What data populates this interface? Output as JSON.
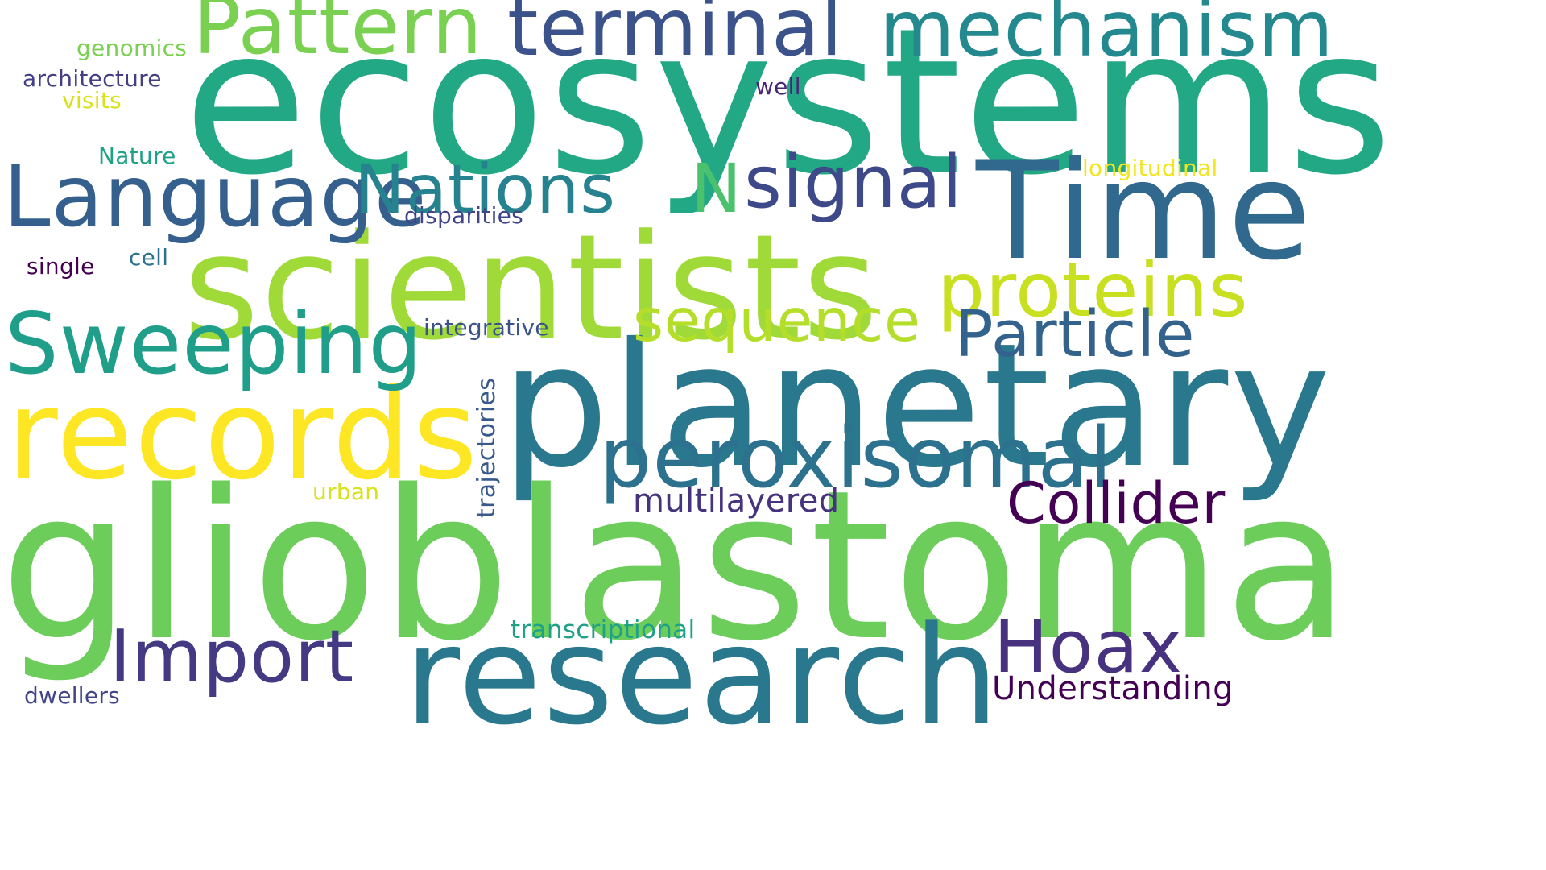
{
  "words": [
    {
      "text": "ecosystems",
      "color": "#22a884"
    },
    {
      "text": "glioblastoma",
      "color": "#6ccd5a"
    },
    {
      "text": "scientists",
      "color": "#a0da39"
    },
    {
      "text": "planetary",
      "color": "#2a788e"
    },
    {
      "text": "research",
      "color": "#2a788e"
    },
    {
      "text": "records",
      "color": "#fde725"
    },
    {
      "text": "Time",
      "color": "#31688e"
    },
    {
      "text": "Language",
      "color": "#35608d"
    },
    {
      "text": "Pattern",
      "color": "#7ad151"
    },
    {
      "text": "terminal",
      "color": "#3b528b"
    },
    {
      "text": "mechanism",
      "color": "#23898e"
    },
    {
      "text": "Sweeping",
      "color": "#1f9e89"
    },
    {
      "text": "peroxisomal",
      "color": "#2c728e"
    },
    {
      "text": "proteins",
      "color": "#c8e020"
    },
    {
      "text": "Nations",
      "color": "#26828e"
    },
    {
      "text": "signal",
      "color": "#3e4989"
    },
    {
      "text": "N",
      "color": "#4ac16d"
    },
    {
      "text": "sequence",
      "color": "#b5de2b"
    },
    {
      "text": "Particle",
      "color": "#33638d"
    },
    {
      "text": "Import",
      "color": "#443983"
    },
    {
      "text": "Hoax",
      "color": "#46327e"
    },
    {
      "text": "Collider",
      "color": "#440154"
    },
    {
      "text": "multilayered",
      "color": "#46337e"
    },
    {
      "text": "Understanding",
      "color": "#440154"
    },
    {
      "text": "transcriptional",
      "color": "#1fa187"
    },
    {
      "text": "genomics",
      "color": "#7ad151"
    },
    {
      "text": "architecture",
      "color": "#433e85"
    },
    {
      "text": "visits",
      "color": "#d8e219"
    },
    {
      "text": "Nature",
      "color": "#1fa187"
    },
    {
      "text": "well",
      "color": "#482576"
    },
    {
      "text": "longitudinal",
      "color": "#f1e51d"
    },
    {
      "text": "disparities",
      "color": "#414487"
    },
    {
      "text": "single",
      "color": "#440154"
    },
    {
      "text": "cell",
      "color": "#2c728e"
    },
    {
      "text": "integrative",
      "color": "#3b528b"
    },
    {
      "text": "trajectories",
      "color": "#38598c"
    },
    {
      "text": "urban",
      "color": "#d8e219"
    },
    {
      "text": "dwellers",
      "color": "#414487"
    }
  ]
}
